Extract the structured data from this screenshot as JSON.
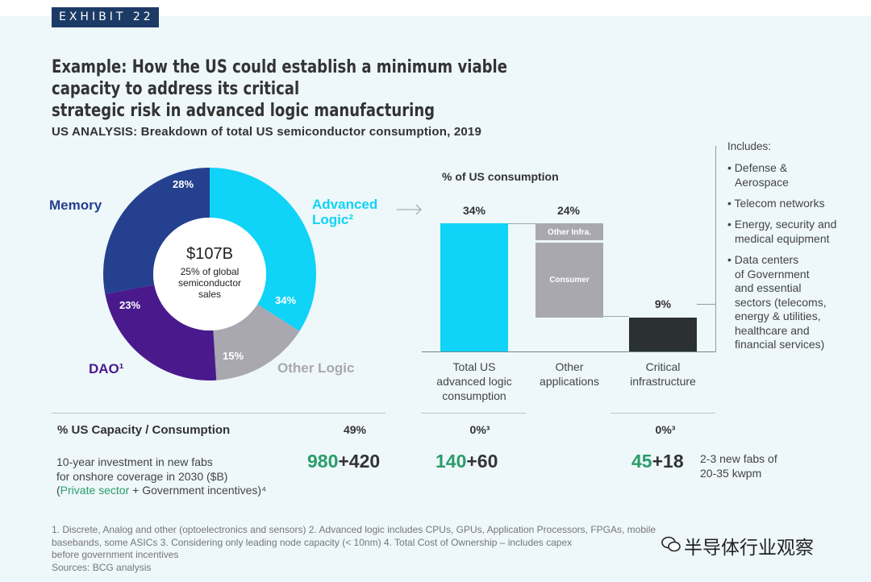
{
  "exhibit": "EXHIBIT 22",
  "title": {
    "line1": "Example: How the US could establish a minimum viable capacity to address its critical",
    "line2": "strategic risk in advanced logic manufacturing"
  },
  "subtitle": "US ANALYSIS: Breakdown of total US semiconductor consumption, 2019",
  "donut": {
    "center_amount": "$107B",
    "center_sub_lines": [
      "25% of global",
      "semiconductor",
      "sales"
    ],
    "labels": {
      "advanced_logic_1": "Advanced",
      "advanced_logic_2": "Logic²",
      "memory": "Memory",
      "dao": "DAO¹",
      "other_logic": "Other Logic"
    },
    "pct_labels": {
      "advanced_logic": "34%",
      "other_logic": "15%",
      "dao": "23%",
      "memory": "28%"
    }
  },
  "bars": {
    "title": "% of US consumption",
    "pct_labels": {
      "total_us": "34%",
      "other_apps": "24%",
      "critical": "9%"
    },
    "inner_labels": {
      "other_infra": "Other Infra.",
      "consumer": "Consumer"
    },
    "categories": {
      "total_us": [
        "Total US",
        "advanced logic",
        "consumption"
      ],
      "other_apps": [
        "Other",
        "applications"
      ],
      "critical": [
        "Critical",
        "infrastructure"
      ]
    }
  },
  "includes": {
    "title": "Includes:",
    "items": [
      [
        "• Defense &",
        "Aerospace"
      ],
      [
        "• Telecom networks"
      ],
      [
        "• Energy, security and",
        "medical equipment"
      ],
      [
        "• Data centers",
        "of Government",
        "and essential",
        "sectors (telecoms,",
        "energy & utilities,",
        "healthcare and",
        "financial services)"
      ]
    ]
  },
  "capacity": {
    "label": "% US Capacity / Consumption",
    "total": "49%",
    "advanced_logic": "0%³",
    "critical": "0%³"
  },
  "investment": {
    "line1": "10-year investment in new fabs",
    "line2": "for onshore coverage in 2030 ($B)",
    "paren_open": "(",
    "private": "Private sector",
    "plus": " + ",
    "gov": "Government incentives",
    "paren_close": ")⁴",
    "total_private": "980",
    "total_gov": "+420",
    "adv_private": "140",
    "adv_gov": "+60",
    "crit_private": "45",
    "crit_gov": "+18",
    "fabs_line1": "2-3 new fabs of",
    "fabs_line2": "20-35 kwpm"
  },
  "footnotes": {
    "line1": "1. Discrete, Analog and other (optoelectronics and sensors)  2. Advanced logic includes CPUs, GPUs, Application Processors, FPGAs, mobile",
    "line2": "basebands, some ASICs  3. Considering only leading node capacity (< 10nm) 4. Total Cost of Ownership – includes capex",
    "line3": "before government incentives",
    "line4": "Sources: BCG analysis"
  },
  "watermark": "半导体行业观察",
  "colors": {
    "advanced_logic": "#0fd3f7",
    "other_logic": "#a9a8b0",
    "dao": "#4a1a8c",
    "memory": "#24408f",
    "critical": "#2b3030",
    "green": "#2a9d6a"
  },
  "chart_data": [
    {
      "type": "pie",
      "title": "US ANALYSIS: Breakdown of total US semiconductor consumption, 2019",
      "categories": [
        "Advanced Logic",
        "Other Logic",
        "DAO",
        "Memory"
      ],
      "values": [
        34,
        15,
        23,
        28
      ],
      "unit": "%"
    },
    {
      "type": "bar",
      "title": "% of US consumption",
      "categories": [
        "Total US advanced logic consumption",
        "Other applications",
        "Critical infrastructure"
      ],
      "values": [
        34,
        24,
        9
      ],
      "unit": "%",
      "segments": {
        "Other applications": [
          "Other Infra.",
          "Consumer"
        ]
      }
    }
  ]
}
